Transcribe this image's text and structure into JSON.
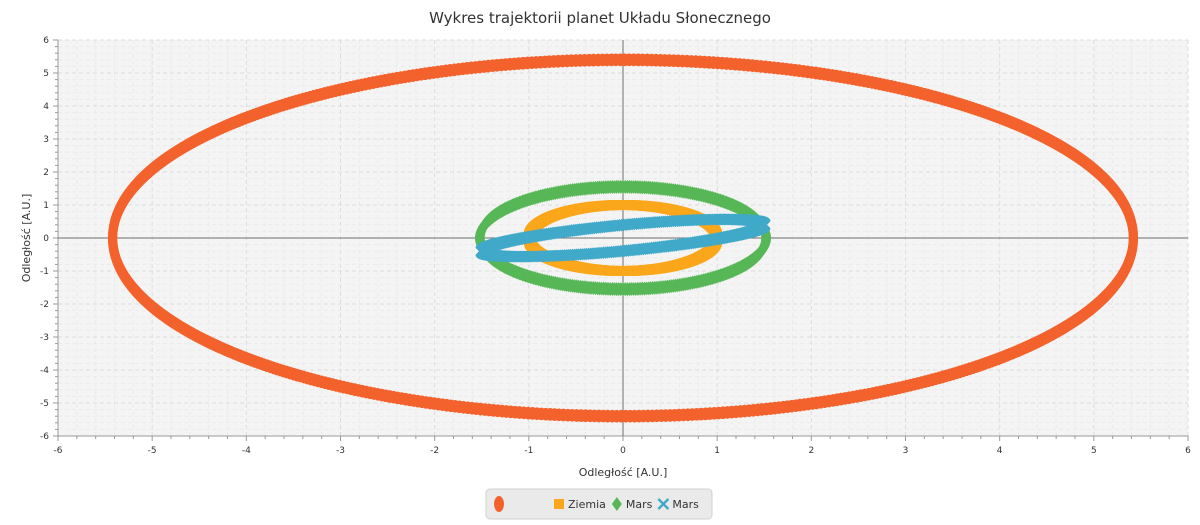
{
  "chart_data": {
    "type": "scatter",
    "title": "Wykres trajektorii planet Układu Słonecznego",
    "xlabel": "Odległość [A.U.]",
    "ylabel": "Odległość [A.U.]",
    "xlim": [
      -6,
      6
    ],
    "ylim": [
      -6,
      6
    ],
    "major_step": 1,
    "grid": true,
    "legend_position": "bottom",
    "x_ticks": [
      -6,
      -5,
      -4,
      -3,
      -2,
      -1,
      0,
      1,
      2,
      3,
      4,
      5,
      6
    ],
    "y_ticks": [
      -6,
      -5,
      -4,
      -3,
      -2,
      -1,
      0,
      1,
      2,
      3,
      4,
      5,
      6
    ],
    "series": [
      {
        "name": "",
        "marker": "circle",
        "color": "#f3622d",
        "orbit": {
          "cx": 0,
          "cy": 0,
          "rx": 5.42,
          "ry": 5.4,
          "tilt_deg": 0.8,
          "points": 720
        }
      },
      {
        "name": "Ziemia",
        "marker": "square",
        "color": "#fba71b",
        "orbit": {
          "cx": 0,
          "cy": 0,
          "rx": 1.0,
          "ry": 1.0,
          "tilt_deg": 0,
          "points": 360
        }
      },
      {
        "name": "Mars",
        "marker": "diamond",
        "color": "#57b757",
        "orbit": {
          "cx": 0,
          "cy": 0,
          "rx": 1.52,
          "ry": 1.55,
          "tilt_deg": 0,
          "points": 420
        }
      },
      {
        "name": "Mars",
        "marker": "x",
        "color": "#41a9c9",
        "orbit": {
          "cx": 0,
          "cy": 0,
          "rx": 1.56,
          "ry": 0.38,
          "tilt_deg": 16,
          "points": 420
        }
      }
    ]
  }
}
